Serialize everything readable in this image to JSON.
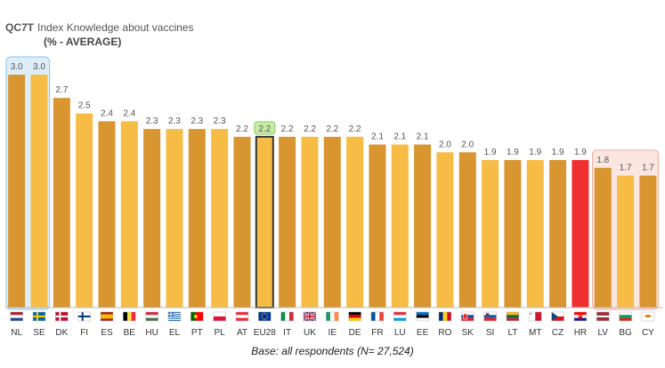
{
  "header": {
    "code": "QC7T",
    "title": "Index Knowledge about vaccines",
    "subtitle": "(% - AVERAGE)"
  },
  "footer": {
    "base": "Base: all respondents (N= 27,524)"
  },
  "colors": {
    "bar_dark": "#D89530",
    "bar_light": "#F6BC45",
    "highlight_hr": "#F03030",
    "top_group_fill": "#DDEEF8",
    "top_group_border": "#9CCDEA",
    "bottom_group_fill": "#FBE6E0",
    "bottom_group_border": "#F1B5A6",
    "eu_label_fill": "#C7EBA5",
    "eu_label_border": "#8FCB63",
    "value_text": "#555555",
    "axis_text": "#333333"
  },
  "chart_data": {
    "type": "bar",
    "categories": [
      "NL",
      "SE",
      "DK",
      "FI",
      "ES",
      "BE",
      "HU",
      "EL",
      "PT",
      "PL",
      "AT",
      "EU28",
      "IT",
      "UK",
      "IE",
      "DE",
      "FR",
      "LU",
      "EE",
      "RO",
      "SK",
      "SI",
      "LT",
      "MT",
      "CZ",
      "HR",
      "LV",
      "BG",
      "CY"
    ],
    "values": [
      3.0,
      3.0,
      2.7,
      2.5,
      2.4,
      2.4,
      2.3,
      2.3,
      2.3,
      2.3,
      2.2,
      2.2,
      2.2,
      2.2,
      2.2,
      2.2,
      2.1,
      2.1,
      2.1,
      2.0,
      2.0,
      1.9,
      1.9,
      1.9,
      1.9,
      1.9,
      1.8,
      1.7,
      1.7
    ],
    "value_labels": [
      "3.0",
      "3.0",
      "2.7",
      "2.5",
      "2.4",
      "2.4",
      "2.3",
      "2.3",
      "2.3",
      "2.3",
      "2.2",
      "2.2",
      "2.2",
      "2.2",
      "2.2",
      "2.2",
      "2.1",
      "2.1",
      "2.1",
      "2.0",
      "2.0",
      "1.9",
      "1.9",
      "1.9",
      "1.9",
      "1.9",
      "1.8",
      "1.7",
      "1.7"
    ],
    "ylim": [
      0,
      3.0
    ],
    "highlight_top": [
      "NL",
      "SE"
    ],
    "highlight_bottom": [
      "LV",
      "BG",
      "CY"
    ],
    "average_category": "EU28",
    "red_category": "HR",
    "flag_icons": [
      "nl-flag-icon",
      "se-flag-icon",
      "dk-flag-icon",
      "fi-flag-icon",
      "es-flag-icon",
      "be-flag-icon",
      "hu-flag-icon",
      "el-flag-icon",
      "pt-flag-icon",
      "pl-flag-icon",
      "at-flag-icon",
      "eu-flag-icon",
      "it-flag-icon",
      "uk-flag-icon",
      "ie-flag-icon",
      "de-flag-icon",
      "fr-flag-icon",
      "lu-flag-icon",
      "ee-flag-icon",
      "ro-flag-icon",
      "sk-flag-icon",
      "si-flag-icon",
      "lt-flag-icon",
      "mt-flag-icon",
      "cz-flag-icon",
      "hr-flag-icon",
      "lv-flag-icon",
      "bg-flag-icon",
      "cy-flag-icon"
    ]
  }
}
